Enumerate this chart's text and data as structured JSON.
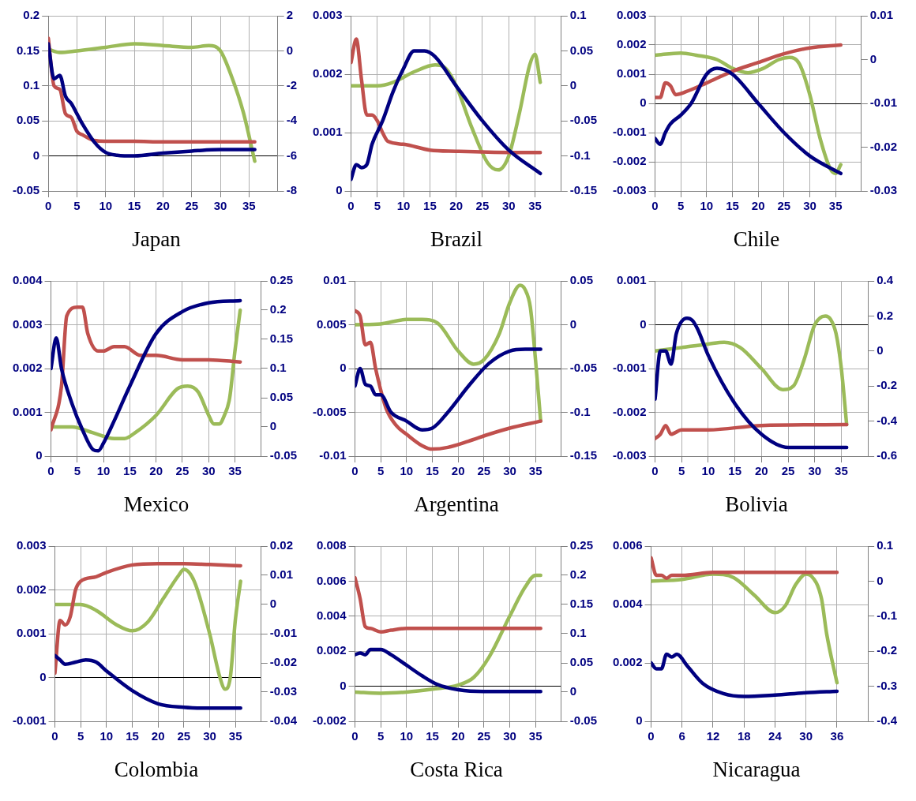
{
  "chart_data": [
    {
      "type": "line",
      "title": "Japan",
      "marker": "none",
      "grid": true,
      "xlim": [
        0,
        40
      ],
      "xticks": [
        0,
        5,
        10,
        15,
        20,
        25,
        30,
        35
      ],
      "ylim": [
        -0.05,
        0.2
      ],
      "yticks": [
        -0.05,
        0,
        0.05,
        0.1,
        0.15,
        0.2
      ],
      "y2lim": [
        -8,
        2
      ],
      "y2ticks": [
        -8,
        -6,
        -4,
        -2,
        0,
        2
      ],
      "series": [
        {
          "color": "#000080",
          "x": [
            0,
            1,
            2,
            3,
            4,
            5,
            6,
            8,
            10,
            12,
            15,
            20,
            25,
            30,
            36
          ],
          "values": [
            0.16,
            0.11,
            0.115,
            0.085,
            0.075,
            0.06,
            0.045,
            0.02,
            0.005,
            0.001,
            0,
            0.004,
            0.007,
            0.009,
            0.009
          ]
        },
        {
          "color": "#c0504d",
          "x": [
            0,
            1,
            2,
            3,
            4,
            5,
            6,
            8,
            10,
            15,
            20,
            30,
            36
          ],
          "values": [
            0.168,
            0.1,
            0.095,
            0.06,
            0.055,
            0.035,
            0.03,
            0.022,
            0.021,
            0.021,
            0.02,
            0.02,
            0.02
          ]
        },
        {
          "color": "#9bbb59",
          "axis": "y2",
          "x": [
            0,
            2,
            5,
            10,
            15,
            20,
            25,
            28,
            30,
            32,
            34,
            36
          ],
          "values": [
            0.1,
            -0.1,
            0,
            0.2,
            0.4,
            0.3,
            0.2,
            0.3,
            0,
            -1.5,
            -3.5,
            -6.3
          ]
        }
      ]
    },
    {
      "type": "line",
      "title": "Brazil",
      "marker": "none",
      "grid": true,
      "xlim": [
        0,
        40
      ],
      "xticks": [
        0,
        5,
        10,
        15,
        20,
        25,
        30,
        35
      ],
      "ylim": [
        0,
        0.003
      ],
      "yticks": [
        0,
        0.001,
        0.002,
        0.003
      ],
      "y2lim": [
        -0.15,
        0.1
      ],
      "y2ticks": [
        -0.15,
        -0.1,
        -0.05,
        0,
        0.05,
        0.1
      ],
      "series": [
        {
          "color": "#000080",
          "x": [
            0,
            1,
            2,
            3,
            4,
            6,
            8,
            10,
            12,
            14,
            16,
            20,
            25,
            30,
            36
          ],
          "values": [
            0.0002,
            0.00045,
            0.0004,
            0.00045,
            0.0008,
            0.0012,
            0.0017,
            0.0021,
            0.0024,
            0.0024,
            0.0023,
            0.0018,
            0.0012,
            0.0007,
            0.0003
          ]
        },
        {
          "color": "#c0504d",
          "x": [
            0,
            1,
            2,
            3,
            4,
            5,
            6,
            7,
            10,
            15,
            20,
            30,
            36
          ],
          "values": [
            0.0022,
            0.0026,
            0.0019,
            0.0013,
            0.0013,
            0.0012,
            0.001,
            0.00085,
            0.0008,
            0.0007,
            0.00068,
            0.00066,
            0.00066
          ]
        },
        {
          "color": "#9bbb59",
          "axis": "y2",
          "x": [
            0,
            5,
            8,
            12,
            16,
            18,
            20,
            23,
            26,
            28,
            30,
            32,
            34,
            35,
            36
          ],
          "values": [
            0,
            0,
            0.005,
            0.02,
            0.03,
            0.025,
            0,
            -0.06,
            -0.11,
            -0.12,
            -0.1,
            -0.04,
            0.03,
            0.045,
            0.005
          ]
        }
      ]
    },
    {
      "type": "line",
      "title": "Chile",
      "marker": "none",
      "grid": true,
      "xlim": [
        0,
        40
      ],
      "xticks": [
        0,
        5,
        10,
        15,
        20,
        25,
        30,
        35
      ],
      "ylim": [
        -0.003,
        0.003
      ],
      "yticks": [
        -0.003,
        -0.002,
        -0.001,
        0,
        0.001,
        0.002,
        0.003
      ],
      "y2lim": [
        -0.03,
        0.01
      ],
      "y2ticks": [
        -0.03,
        -0.02,
        -0.01,
        0,
        0.01
      ],
      "series": [
        {
          "color": "#000080",
          "x": [
            0,
            1,
            2,
            3,
            5,
            7,
            10,
            12,
            15,
            20,
            25,
            30,
            36
          ],
          "values": [
            -0.0012,
            -0.0014,
            -0.001,
            -0.0007,
            -0.0004,
            0,
            0.001,
            0.0012,
            0.001,
            0,
            -0.001,
            -0.0018,
            -0.0024
          ]
        },
        {
          "color": "#c0504d",
          "x": [
            0,
            1,
            2,
            3,
            4,
            6,
            10,
            15,
            20,
            25,
            30,
            36
          ],
          "values": [
            0.0002,
            0.0002,
            0.0007,
            0.0006,
            0.0003,
            0.0004,
            0.0007,
            0.0011,
            0.0014,
            0.0017,
            0.0019,
            0.002
          ]
        },
        {
          "color": "#9bbb59",
          "axis": "y2",
          "x": [
            0,
            5,
            8,
            12,
            15,
            18,
            21,
            24,
            26,
            28,
            30,
            32,
            34,
            35,
            36
          ],
          "values": [
            0.001,
            0.0015,
            0.001,
            0,
            -0.002,
            -0.003,
            -0.002,
            0,
            0.0005,
            -0.001,
            -0.008,
            -0.018,
            -0.025,
            -0.026,
            -0.024
          ]
        }
      ]
    },
    {
      "type": "line",
      "title": "Mexico",
      "marker": "none",
      "grid": true,
      "xlim": [
        0,
        40
      ],
      "xticks": [
        0,
        5,
        10,
        15,
        20,
        25,
        30,
        35
      ],
      "ylim": [
        0,
        0.004
      ],
      "yticks": [
        0,
        0.001,
        0.002,
        0.003,
        0.004
      ],
      "y2lim": [
        -0.05,
        0.25
      ],
      "y2ticks": [
        -0.05,
        0,
        0.05,
        0.1,
        0.15,
        0.2,
        0.25
      ],
      "series": [
        {
          "color": "#000080",
          "x": [
            0,
            1,
            2,
            4,
            6,
            8,
            9,
            10,
            12,
            15,
            20,
            25,
            30,
            36
          ],
          "values": [
            0.002,
            0.0027,
            0.002,
            0.0012,
            0.0006,
            0.00015,
            0.00012,
            0.0003,
            0.0008,
            0.0016,
            0.0028,
            0.0033,
            0.0035,
            0.00355
          ]
        },
        {
          "color": "#c0504d",
          "x": [
            0,
            2,
            3,
            5,
            6,
            7,
            9,
            10,
            12,
            14,
            17,
            20,
            25,
            30,
            36
          ],
          "values": [
            0.0006,
            0.0016,
            0.0032,
            0.0034,
            0.0034,
            0.0028,
            0.0024,
            0.0024,
            0.0025,
            0.0025,
            0.0023,
            0.0023,
            0.0022,
            0.0022,
            0.00215
          ]
        },
        {
          "color": "#9bbb59",
          "axis": "y2",
          "x": [
            0,
            4,
            8,
            12,
            14,
            16,
            20,
            24,
            26,
            28,
            30,
            31,
            32,
            33,
            34,
            35,
            36
          ],
          "values": [
            0,
            0,
            -0.01,
            -0.02,
            -0.02,
            -0.01,
            0.02,
            0.065,
            0.07,
            0.06,
            0.02,
            0.005,
            0.005,
            0.02,
            0.05,
            0.13,
            0.2
          ]
        }
      ]
    },
    {
      "type": "line",
      "title": "Argentina",
      "marker": "none",
      "grid": true,
      "xlim": [
        0,
        40
      ],
      "xticks": [
        0,
        5,
        10,
        15,
        20,
        25,
        30,
        35
      ],
      "ylim": [
        -0.01,
        0.01
      ],
      "yticks": [
        -0.01,
        -0.005,
        0,
        0.005,
        0.01
      ],
      "y2lim": [
        -0.15,
        0.05
      ],
      "y2ticks": [
        -0.15,
        -0.1,
        -0.05,
        0,
        0.05
      ],
      "series": [
        {
          "color": "#000080",
          "x": [
            0,
            1,
            2,
            3,
            4,
            5,
            7,
            10,
            13,
            15,
            18,
            22,
            26,
            30,
            33,
            36
          ],
          "values": [
            -0.002,
            0,
            -0.0018,
            -0.002,
            -0.003,
            -0.003,
            -0.005,
            -0.006,
            -0.007,
            -0.0068,
            -0.005,
            -0.002,
            0.0006,
            0.002,
            0.0022,
            0.0022
          ]
        },
        {
          "color": "#c0504d",
          "x": [
            0,
            1,
            2,
            3,
            4,
            6,
            8,
            10,
            13,
            15,
            18,
            22,
            26,
            30,
            36
          ],
          "values": [
            0.0066,
            0.006,
            0.0027,
            0.003,
            0,
            -0.0045,
            -0.0065,
            -0.0075,
            -0.0088,
            -0.0092,
            -0.009,
            -0.0083,
            -0.0075,
            -0.0068,
            -0.006
          ]
        },
        {
          "color": "#9bbb59",
          "axis": "y2",
          "x": [
            0,
            5,
            10,
            13,
            16,
            20,
            23,
            25,
            28,
            30,
            32,
            33,
            34,
            35,
            36
          ],
          "values": [
            0,
            0.001,
            0.006,
            0.006,
            0.002,
            -0.03,
            -0.045,
            -0.04,
            -0.01,
            0.025,
            0.045,
            0.04,
            0.02,
            -0.04,
            -0.11
          ]
        }
      ]
    },
    {
      "type": "line",
      "title": "Bolivia",
      "marker": "none",
      "grid": true,
      "xlim": [
        0,
        40
      ],
      "xticks": [
        0,
        5,
        10,
        15,
        20,
        25,
        30,
        35
      ],
      "ylim": [
        -0.003,
        0.001
      ],
      "yticks": [
        -0.003,
        -0.002,
        -0.001,
        0,
        0.001
      ],
      "y2lim": [
        -0.6,
        0.4
      ],
      "y2ticks": [
        -0.6,
        -0.4,
        -0.2,
        0,
        0.2,
        0.4
      ],
      "series": [
        {
          "color": "#000080",
          "x": [
            0,
            1,
            2,
            3,
            4,
            6,
            7,
            8,
            10,
            15,
            20,
            25,
            30,
            36
          ],
          "values": [
            -0.0017,
            -0.0006,
            -0.0006,
            -0.0009,
            -0.0002,
            0.00015,
            0.0001,
            -0.0001,
            -0.0007,
            -0.0018,
            -0.0025,
            -0.0028,
            -0.0028,
            -0.0028
          ]
        },
        {
          "color": "#c0504d",
          "x": [
            0,
            1,
            2,
            3,
            5,
            7,
            10,
            20,
            36
          ],
          "values": [
            -0.0026,
            -0.0025,
            -0.0023,
            -0.0025,
            -0.0024,
            -0.0024,
            -0.0024,
            -0.0023,
            -0.00228
          ]
        },
        {
          "color": "#9bbb59",
          "axis": "y2",
          "x": [
            0,
            5,
            10,
            13,
            16,
            20,
            24,
            26,
            28,
            30,
            32,
            33,
            34,
            35,
            36
          ],
          "values": [
            0,
            0.02,
            0.04,
            0.05,
            0.02,
            -0.1,
            -0.22,
            -0.2,
            -0.05,
            0.15,
            0.2,
            0.18,
            0.1,
            -0.1,
            -0.42
          ]
        }
      ]
    },
    {
      "type": "line",
      "title": "Colombia",
      "marker": "none",
      "grid": true,
      "xlim": [
        0,
        40
      ],
      "xticks": [
        0,
        5,
        10,
        15,
        20,
        25,
        30,
        35
      ],
      "ylim": [
        -0.001,
        0.003
      ],
      "yticks": [
        -0.001,
        0,
        0.001,
        0.002,
        0.003
      ],
      "y2lim": [
        -0.04,
        0.02
      ],
      "y2ticks": [
        -0.04,
        -0.03,
        -0.02,
        -0.01,
        0,
        0.01,
        0.02
      ],
      "series": [
        {
          "color": "#000080",
          "x": [
            0,
            1,
            2,
            4,
            6,
            8,
            10,
            15,
            20,
            25,
            30,
            36
          ],
          "values": [
            0.0005,
            0.0004,
            0.0003,
            0.00035,
            0.0004,
            0.00035,
            0.00015,
            -0.0003,
            -0.0006,
            -0.00068,
            -0.0007,
            -0.0007
          ]
        },
        {
          "color": "#c0504d",
          "x": [
            0,
            1,
            2,
            3,
            4,
            5,
            8,
            10,
            15,
            20,
            25,
            30,
            36
          ],
          "values": [
            0.0001,
            0.0013,
            0.0012,
            0.0014,
            0.002,
            0.0022,
            0.0023,
            0.0024,
            0.00257,
            0.0026,
            0.0026,
            0.00258,
            0.00255
          ]
        },
        {
          "color": "#9bbb59",
          "axis": "y2",
          "x": [
            0,
            5,
            8,
            12,
            15,
            18,
            21,
            24,
            25,
            27,
            30,
            32,
            33,
            34,
            35,
            36
          ],
          "values": [
            0,
            0,
            -0.002,
            -0.007,
            -0.009,
            -0.006,
            0.002,
            0.01,
            0.012,
            0.008,
            -0.01,
            -0.025,
            -0.029,
            -0.025,
            -0.005,
            0.008
          ]
        }
      ]
    },
    {
      "type": "line",
      "title": "Costa Rica",
      "marker": "none",
      "grid": true,
      "xlim": [
        0,
        40
      ],
      "xticks": [
        0,
        5,
        10,
        15,
        20,
        25,
        30,
        35
      ],
      "ylim": [
        -0.002,
        0.008
      ],
      "yticks": [
        -0.002,
        0,
        0.002,
        0.004,
        0.006,
        0.008
      ],
      "y2lim": [
        -0.05,
        0.25
      ],
      "y2ticks": [
        -0.05,
        0,
        0.05,
        0.1,
        0.15,
        0.2,
        0.25
      ],
      "series": [
        {
          "color": "#000080",
          "x": [
            0,
            1,
            2,
            3,
            5,
            7,
            10,
            13,
            16,
            20,
            25,
            36
          ],
          "values": [
            0.0018,
            0.0019,
            0.0018,
            0.0021,
            0.0021,
            0.0018,
            0.0012,
            0.0006,
            0.0001,
            -0.0002,
            -0.0003,
            -0.0003
          ]
        },
        {
          "color": "#c0504d",
          "x": [
            0,
            1,
            2,
            3,
            5,
            7,
            10,
            36
          ],
          "values": [
            0.0062,
            0.005,
            0.0034,
            0.0033,
            0.0031,
            0.0032,
            0.0033,
            0.0033
          ]
        },
        {
          "color": "#9bbb59",
          "axis": "y2",
          "x": [
            0,
            5,
            10,
            15,
            20,
            23,
            26,
            30,
            33,
            35,
            36
          ],
          "values": [
            0,
            -0.002,
            0,
            0.005,
            0.012,
            0.025,
            0.06,
            0.13,
            0.18,
            0.2,
            0.2
          ]
        }
      ]
    },
    {
      "type": "line",
      "title": "Nicaragua",
      "marker": "none",
      "grid": true,
      "xlim": [
        0,
        42
      ],
      "xticks": [
        0,
        6,
        12,
        18,
        24,
        30,
        36
      ],
      "ylim": [
        0,
        0.006
      ],
      "yticks": [
        0,
        0.002,
        0.004,
        0.006
      ],
      "y2lim": [
        -0.4,
        0.1
      ],
      "y2ticks": [
        -0.4,
        -0.3,
        -0.2,
        -0.1,
        0,
        0.1
      ],
      "series": [
        {
          "color": "#000080",
          "x": [
            0,
            1,
            2,
            3,
            4,
            5,
            7,
            10,
            14,
            18,
            24,
            30,
            36
          ],
          "values": [
            0.002,
            0.0018,
            0.0018,
            0.0023,
            0.0022,
            0.0023,
            0.0019,
            0.0013,
            0.00095,
            0.00085,
            0.0009,
            0.00098,
            0.00103
          ]
        },
        {
          "color": "#c0504d",
          "x": [
            0,
            1,
            2,
            3,
            4,
            6,
            12,
            36
          ],
          "values": [
            0.0056,
            0.005,
            0.005,
            0.0049,
            0.005,
            0.005,
            0.0051,
            0.0051
          ]
        },
        {
          "color": "#9bbb59",
          "axis": "y2",
          "x": [
            0,
            6,
            12,
            16,
            20,
            24,
            26,
            28,
            30,
            31,
            33,
            34,
            36
          ],
          "values": [
            0,
            0.005,
            0.02,
            0.01,
            -0.04,
            -0.09,
            -0.07,
            -0.01,
            0.02,
            0.015,
            -0.05,
            -0.15,
            -0.29
          ]
        }
      ]
    }
  ]
}
